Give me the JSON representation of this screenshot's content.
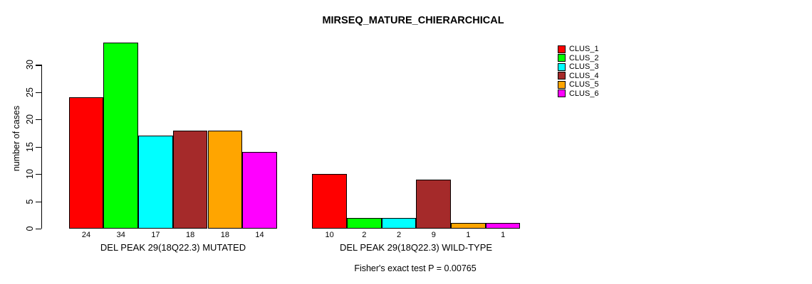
{
  "chart_data": {
    "type": "bar",
    "title": "MIRSEQ_MATURE_CHIERARCHICAL",
    "ylabel": "number of cases",
    "ylim": [
      0,
      34
    ],
    "yticks": [
      0,
      5,
      10,
      15,
      20,
      25,
      30
    ],
    "grid": false,
    "legend_position": "right-outside",
    "series_names": [
      "CLUS_1",
      "CLUS_2",
      "CLUS_3",
      "CLUS_4",
      "CLUS_5",
      "CLUS_6"
    ],
    "series_colors": [
      "#FF0000",
      "#00FF00",
      "#00FFFF",
      "#A52A2A",
      "#FFA500",
      "#FF00FF"
    ],
    "groups": [
      {
        "label": "DEL PEAK 29(18Q22.3) MUTATED",
        "values": [
          24,
          34,
          17,
          18,
          18,
          14
        ]
      },
      {
        "label": "DEL PEAK 29(18Q22.3) WILD-TYPE",
        "values": [
          10,
          2,
          2,
          9,
          1,
          1
        ]
      }
    ],
    "bar_value_labels_shown": true,
    "caption": "Fisher's exact test P = 0.00765",
    "colors": {
      "background": "#FFFFFF",
      "axis": "#000000",
      "text": "#000000"
    }
  }
}
